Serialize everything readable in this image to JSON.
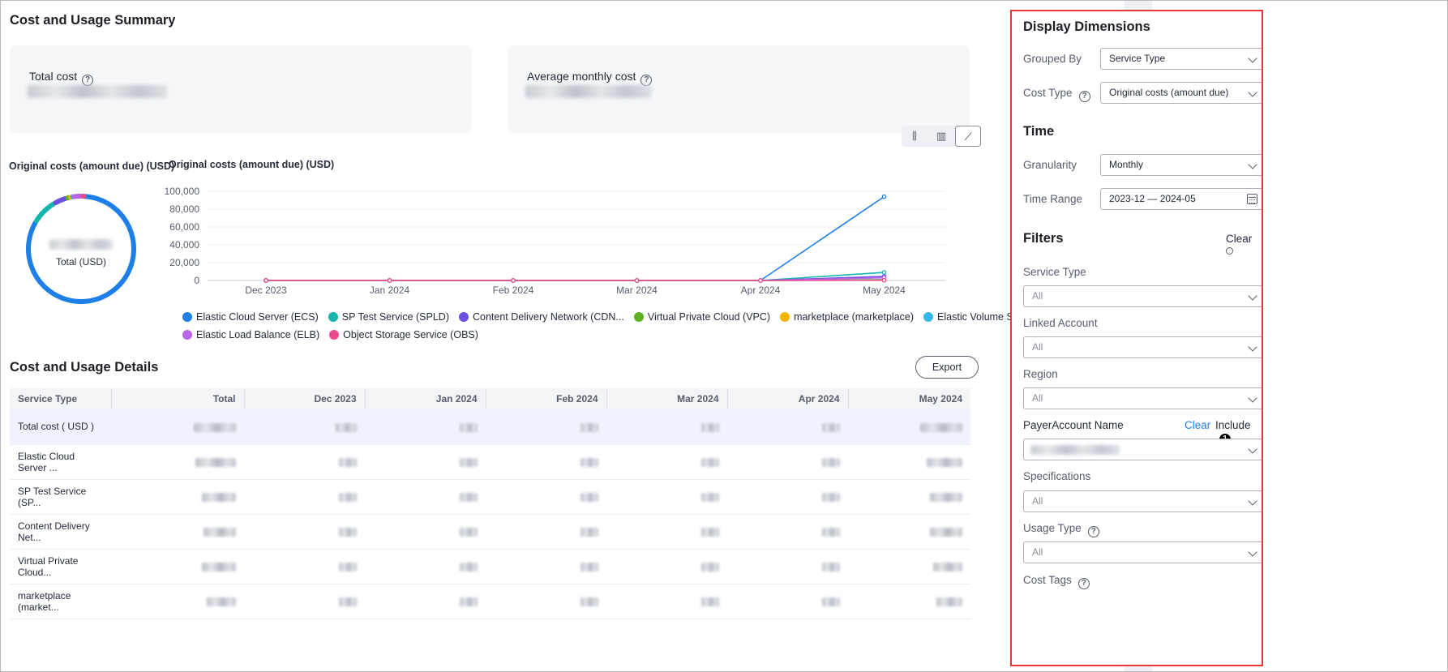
{
  "summary": {
    "title": "Cost and Usage Summary",
    "total_cost_label": "Total cost",
    "avg_monthly_label": "Average monthly cost"
  },
  "view_toggle": {
    "options": [
      "bar-stacked-icon",
      "bar-grouped-icon",
      "line-chart-icon"
    ],
    "active": "line-chart-icon",
    "glyphs": [
      "⫼",
      "▥",
      "⟋"
    ]
  },
  "donut": {
    "title": "Original costs (amount due) (USD)",
    "center_label": "Total (USD)"
  },
  "chart_data": {
    "type": "line",
    "title": "Original costs (amount due)  (USD)",
    "x": [
      "Dec 2023",
      "Jan 2024",
      "Feb 2024",
      "Mar 2024",
      "Apr 2024",
      "May 2024"
    ],
    "yticks": [
      "100,000",
      "80,000",
      "60,000",
      "40,000",
      "20,000",
      "0"
    ],
    "ylim": [
      0,
      100000
    ],
    "series": [
      {
        "name": "Elastic Cloud Server (ECS)",
        "color": "#1e7fe8",
        "values": [
          0,
          0,
          0,
          0,
          0,
          94000
        ]
      },
      {
        "name": "SP Test Service (SPLD)",
        "color": "#15b5ad",
        "values": [
          0,
          0,
          0,
          0,
          0,
          9000
        ]
      },
      {
        "name": "Content Delivery Network (CDN...",
        "color": "#6c4fdc",
        "values": [
          0,
          0,
          0,
          0,
          0,
          4500
        ]
      },
      {
        "name": "Virtual Private Cloud (VPC)",
        "color": "#5db01e",
        "values": [
          0,
          0,
          0,
          0,
          0,
          1000
        ]
      },
      {
        "name": "marketplace (marketplace)",
        "color": "#f5b400",
        "values": [
          0,
          0,
          0,
          0,
          0,
          700
        ]
      },
      {
        "name": "Elastic Volume Service (EVS)",
        "color": "#39b7ea",
        "values": [
          0,
          0,
          0,
          0,
          0,
          500
        ]
      },
      {
        "name": "Elastic Load Balance (ELB)",
        "color": "#b865e8",
        "values": [
          0,
          0,
          0,
          0,
          0,
          3000
        ]
      },
      {
        "name": "Object Storage Service (OBS)",
        "color": "#ec4a8e",
        "values": [
          0,
          0,
          0,
          0,
          0,
          300
        ]
      }
    ],
    "grid": true,
    "legend": "bottom"
  },
  "details": {
    "title": "Cost and Usage Details",
    "export_label": "Export",
    "columns": [
      "Service Type",
      "Total",
      "Dec 2023",
      "Jan 2024",
      "Feb 2024",
      "Mar 2024",
      "Apr 2024",
      "May 2024"
    ],
    "rows": [
      "Total cost ( USD )",
      "Elastic Cloud Server ...",
      "SP Test Service (SP...",
      "Content Delivery Net...",
      "Virtual Private Cloud...",
      "marketplace (market..."
    ]
  },
  "panel": {
    "display_title": "Display Dimensions",
    "grouped_by_label": "Grouped By",
    "grouped_by_value": "Service Type",
    "cost_type_label": "Cost Type",
    "cost_type_value": "Original costs (amount due)",
    "time_title": "Time",
    "granularity_label": "Granularity",
    "granularity_value": "Monthly",
    "time_range_label": "Time Range",
    "time_range_value": "2023-12 — 2024-05",
    "filters_title": "Filters",
    "filters_clear": "Clear",
    "service_type_label": "Service Type",
    "linked_account_label": "Linked Account",
    "region_label": "Region",
    "payer_label": "PayerAccount Name",
    "payer_clear": "Clear",
    "payer_include": "Include",
    "payer_count": "1",
    "specifications_label": "Specifications",
    "usage_type_label": "Usage Type",
    "cost_tags_label": "Cost Tags",
    "all_value": "All",
    "accent": "#1e7fe8"
  }
}
